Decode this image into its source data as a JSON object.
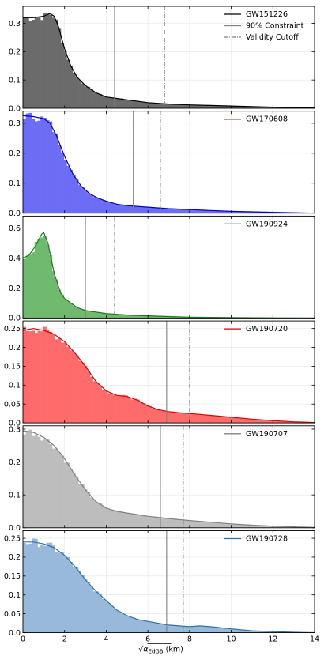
{
  "chart_data": {
    "type": "area",
    "xlim": [
      0,
      14
    ],
    "xticks": [
      0,
      2,
      4,
      6,
      8,
      10,
      12,
      14
    ],
    "xlabel": "√α_EdGB (km)",
    "xlabel_main": "α",
    "xlabel_sub": "EdGB",
    "xlabel_unit": "(km)",
    "grid": true,
    "legend_position": "top-right",
    "shared_legend": [
      {
        "name": "GW151226",
        "style": "solid",
        "color": "#000000"
      },
      {
        "name": "90% Constraint",
        "style": "solid",
        "color": "#808080"
      },
      {
        "name": "Validity Cutoff",
        "style": "dashdot",
        "color": "#808080"
      }
    ],
    "panels": [
      {
        "name": "GW151226",
        "color": "#000000",
        "fill": "#6b6b6b",
        "ylim": [
          0,
          0.36
        ],
        "yticks": [
          0.0,
          0.1,
          0.2,
          0.3
        ],
        "constraint_90": 4.4,
        "validity_cutoff": 6.8,
        "x": [
          0,
          0.5,
          1.0,
          1.3,
          1.5,
          1.7,
          2.0,
          2.3,
          2.6,
          3.0,
          3.5,
          4.0,
          4.5,
          5.0,
          6.0,
          7.0,
          8.0,
          9.0,
          10.0,
          12.0,
          14.0
        ],
        "y": [
          0.32,
          0.32,
          0.325,
          0.335,
          0.325,
          0.29,
          0.21,
          0.15,
          0.11,
          0.08,
          0.055,
          0.04,
          0.035,
          0.03,
          0.02,
          0.015,
          0.012,
          0.01,
          0.008,
          0.004,
          0.001
        ]
      },
      {
        "name": "GW170608",
        "color": "#0000cc",
        "fill": "#6c6cf5",
        "ylim": [
          0,
          0.34
        ],
        "yticks": [
          0.0,
          0.1,
          0.2,
          0.3
        ],
        "constraint_90": 5.3,
        "validity_cutoff": 6.6,
        "x": [
          0,
          0.5,
          1.0,
          1.3,
          1.6,
          2.0,
          2.4,
          2.8,
          3.2,
          3.6,
          4.0,
          4.5,
          5.0,
          6.0,
          7.0,
          8.0,
          9.0,
          10.0,
          12.0,
          14.0
        ],
        "y": [
          0.325,
          0.322,
          0.315,
          0.3,
          0.26,
          0.19,
          0.13,
          0.09,
          0.065,
          0.05,
          0.04,
          0.03,
          0.025,
          0.02,
          0.015,
          0.012,
          0.009,
          0.006,
          0.003,
          0.0
        ]
      },
      {
        "name": "GW190924",
        "color": "#1b7a1b",
        "fill": "#6fba6f",
        "ylim": [
          0,
          0.68
        ],
        "yticks": [
          0.0,
          0.2,
          0.4,
          0.6
        ],
        "constraint_90": 3.0,
        "validity_cutoff": 4.4,
        "x": [
          0,
          0.3,
          0.6,
          0.9,
          1.0,
          1.2,
          1.5,
          1.8,
          2.0,
          2.3,
          2.6,
          3.0,
          3.5,
          4.0,
          5.0,
          6.0,
          7.0,
          8.0,
          10.0,
          12.0,
          14.0
        ],
        "y": [
          0.4,
          0.42,
          0.48,
          0.56,
          0.57,
          0.5,
          0.3,
          0.17,
          0.13,
          0.1,
          0.07,
          0.05,
          0.04,
          0.03,
          0.02,
          0.015,
          0.01,
          0.006,
          0.003,
          0.001,
          0.0
        ]
      },
      {
        "name": "GW190720",
        "color": "#e00000",
        "fill": "#ff6b6b",
        "ylim": [
          0,
          0.27
        ],
        "yticks": [
          0.0,
          0.05,
          0.1,
          0.15,
          0.2,
          0.25
        ],
        "constraint_90": 6.9,
        "validity_cutoff": 8.0,
        "x": [
          0,
          0.5,
          1.0,
          1.5,
          2.0,
          2.5,
          3.0,
          3.5,
          4.0,
          4.5,
          5.0,
          5.5,
          6.0,
          6.5,
          7.0,
          7.5,
          8.0,
          9.0,
          10.0,
          11.0,
          12.0,
          13.0,
          14.0
        ],
        "y": [
          0.245,
          0.25,
          0.245,
          0.235,
          0.215,
          0.185,
          0.15,
          0.11,
          0.085,
          0.073,
          0.07,
          0.06,
          0.045,
          0.035,
          0.03,
          0.027,
          0.025,
          0.02,
          0.015,
          0.01,
          0.006,
          0.003,
          0.001
        ]
      },
      {
        "name": "GW190707",
        "color": "#808080",
        "fill": "#bdbdbd",
        "ylim": [
          0,
          0.31
        ],
        "yticks": [
          0.0,
          0.1,
          0.2,
          0.3
        ],
        "constraint_90": 6.6,
        "validity_cutoff": 7.7,
        "x": [
          0,
          0.5,
          1.0,
          1.5,
          2.0,
          2.5,
          3.0,
          3.5,
          4.0,
          4.5,
          5.0,
          6.0,
          7.0,
          8.0,
          9.0,
          10.0,
          11.0,
          12.0,
          13.0,
          14.0
        ],
        "y": [
          0.295,
          0.29,
          0.275,
          0.25,
          0.21,
          0.16,
          0.115,
          0.08,
          0.06,
          0.05,
          0.045,
          0.035,
          0.028,
          0.022,
          0.017,
          0.012,
          0.008,
          0.005,
          0.003,
          0.001
        ]
      },
      {
        "name": "GW190728",
        "color": "#2f6fa8",
        "fill": "#98b9d9",
        "ylim": [
          0,
          0.27
        ],
        "yticks": [
          0.0,
          0.05,
          0.1,
          0.15,
          0.2,
          0.25
        ],
        "constraint_90": 6.9,
        "validity_cutoff": 7.7,
        "x": [
          0,
          0.5,
          1.0,
          1.5,
          2.0,
          2.5,
          3.0,
          3.5,
          4.0,
          4.5,
          5.0,
          5.5,
          6.0,
          6.5,
          7.0,
          8.0,
          8.5,
          9.0,
          10.0,
          11.0,
          12.0,
          13.0,
          14.0
        ],
        "y": [
          0.24,
          0.24,
          0.235,
          0.225,
          0.205,
          0.175,
          0.14,
          0.11,
          0.085,
          0.06,
          0.045,
          0.035,
          0.03,
          0.025,
          0.02,
          0.016,
          0.018,
          0.016,
          0.01,
          0.005,
          0.003,
          0.001,
          0.0
        ]
      }
    ]
  }
}
